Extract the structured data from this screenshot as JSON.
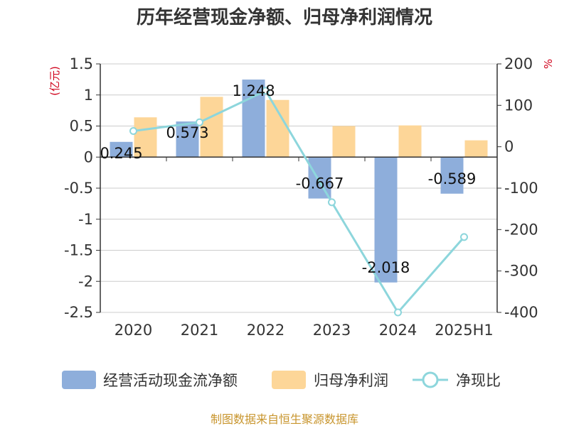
{
  "chart_data": {
    "type": "bar",
    "title": "历年经营现金净额、归母净利润情况",
    "categories": [
      "2020",
      "2021",
      "2022",
      "2023",
      "2024",
      "2025H1"
    ],
    "left_axis": {
      "unit": "(亿元)",
      "ylim": [
        -2.5,
        1.5
      ],
      "ticks": [
        1.5,
        1,
        0.5,
        0,
        -0.5,
        -1,
        -1.5,
        -2,
        -2.5
      ],
      "tick_labels": [
        "1.5",
        "1",
        "0.5",
        "0",
        "-0.5",
        "-1",
        "-1.5",
        "-2",
        "-2.5"
      ]
    },
    "right_axis": {
      "unit": "%",
      "ylim": [
        -400,
        200
      ],
      "ticks": [
        200,
        100,
        0,
        -100,
        -200,
        -300,
        -400
      ],
      "tick_labels": [
        "200",
        "100",
        "0",
        "-100",
        "-200",
        "-300",
        "-400"
      ]
    },
    "series": [
      {
        "name": "经营活动现金流净额",
        "kind": "bar",
        "axis": "left",
        "color": "#8eaedb",
        "values": [
          0.245,
          0.573,
          1.248,
          -0.667,
          -2.018,
          -0.589
        ],
        "labels": [
          "0.245",
          "0.573",
          "1.248",
          "-0.667",
          "-2.018",
          "-0.589"
        ]
      },
      {
        "name": "归母净利润",
        "kind": "bar",
        "axis": "left",
        "color": "#fdd698",
        "values": [
          0.64,
          0.97,
          0.92,
          0.5,
          0.51,
          0.27
        ]
      },
      {
        "name": "净现比",
        "kind": "line",
        "axis": "right",
        "color": "#8dd6dc",
        "values": [
          38,
          59,
          135,
          -134,
          -400,
          -218
        ]
      }
    ],
    "grid": true,
    "legend_position": "bottom"
  },
  "source": "制图数据来自恒生聚源数据库"
}
